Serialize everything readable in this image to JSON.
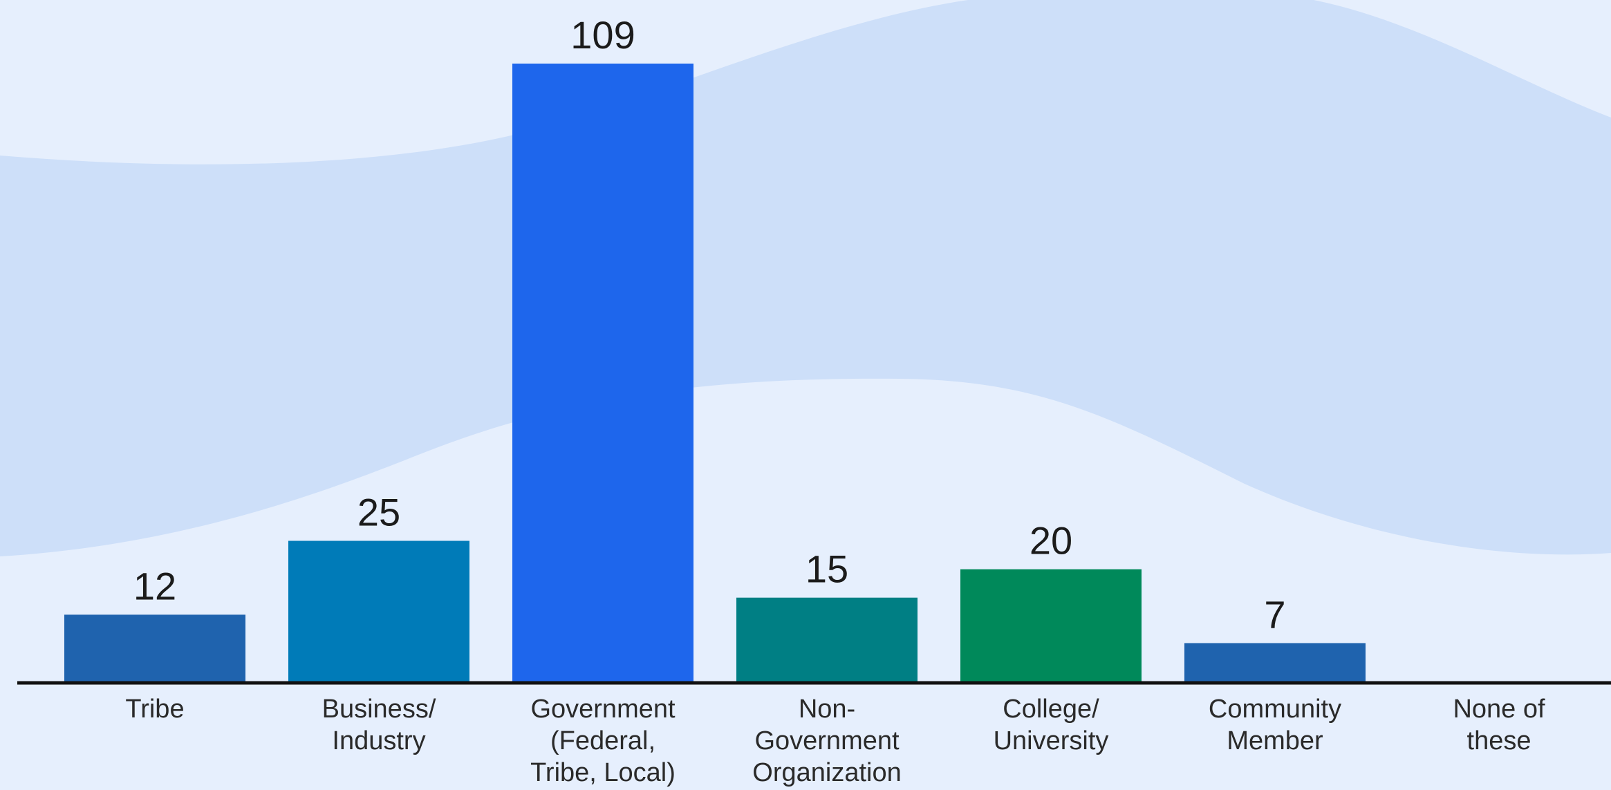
{
  "chart_data": {
    "type": "bar",
    "title": "",
    "xlabel": "",
    "ylabel": "",
    "ylim": [
      0,
      109
    ],
    "grid": false,
    "categories": [
      [
        "Tribe"
      ],
      [
        "Business/",
        "Industry"
      ],
      [
        "Government",
        "(Federal,",
        "Tribe, Local)"
      ],
      [
        "Non-",
        "Government",
        "Organization"
      ],
      [
        "College/",
        "University"
      ],
      [
        "Community",
        "Member"
      ],
      [
        "None of",
        "these"
      ]
    ],
    "values": [
      12,
      25,
      109,
      15,
      20,
      7,
      null
    ],
    "value_labels": [
      "12",
      "25",
      "109",
      "15",
      "20",
      "7",
      ""
    ],
    "colors": [
      "#1f63ae",
      "#007bb8",
      "#1e66ec",
      "#007f84",
      "#00895a",
      "#1f63ae",
      "#1f63ae"
    ]
  }
}
